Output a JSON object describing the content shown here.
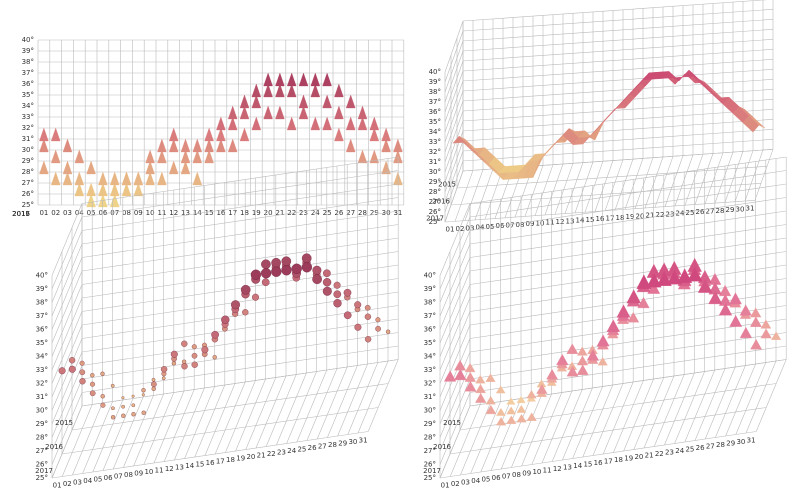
{
  "chart_data": [
    {
      "type": "cone",
      "view": "front",
      "categories": [
        "01",
        "02",
        "03",
        "04",
        "05",
        "06",
        "07",
        "08",
        "09",
        "10",
        "11",
        "12",
        "13",
        "14",
        "15",
        "16",
        "17",
        "18",
        "19",
        "20",
        "21",
        "22",
        "23",
        "24",
        "25",
        "26",
        "27",
        "28",
        "29",
        "30",
        "31"
      ],
      "series": [
        {
          "name": "2015",
          "values": [
            29,
            28,
            28,
            27,
            26,
            26,
            26,
            27,
            27,
            28,
            28,
            29,
            29,
            28,
            30,
            31,
            31,
            32,
            33,
            34,
            34,
            33,
            34,
            33,
            33,
            32,
            31,
            30,
            30,
            29,
            28
          ]
        },
        {
          "name": "2016",
          "values": [
            31,
            30,
            29,
            28,
            27,
            27,
            27,
            28,
            28,
            29,
            30,
            31,
            30,
            30,
            31,
            32,
            33,
            34,
            35,
            36,
            36,
            36,
            35,
            36,
            35,
            34,
            33,
            33,
            32,
            31,
            30
          ]
        },
        {
          "name": "2017",
          "values": [
            32,
            32,
            31,
            30,
            29,
            28,
            28,
            28,
            28,
            30,
            31,
            32,
            31,
            31,
            32,
            33,
            34,
            35,
            36,
            37,
            37,
            37,
            37,
            37,
            37,
            36,
            35,
            34,
            33,
            32,
            31
          ]
        }
      ],
      "ylim": [
        25,
        40
      ],
      "yticks": [
        {
          "value": 25,
          "label": "25°"
        },
        {
          "value": 26,
          "label": "26°"
        },
        {
          "value": 27,
          "label": "27°"
        },
        {
          "value": 28,
          "label": "28°"
        },
        {
          "value": 29,
          "label": "29°"
        },
        {
          "value": 30,
          "label": "30°"
        },
        {
          "value": 31,
          "label": "31°"
        },
        {
          "value": 32,
          "label": "32°"
        },
        {
          "value": 33,
          "label": "33°"
        },
        {
          "value": 34,
          "label": "34°"
        },
        {
          "value": 35,
          "label": "35°"
        },
        {
          "value": 36,
          "label": "36°"
        },
        {
          "value": 37,
          "label": "37°"
        },
        {
          "value": 38,
          "label": "38°"
        },
        {
          "value": 39,
          "label": "39°"
        },
        {
          "value": 40,
          "label": "40°"
        }
      ],
      "colors": [
        "#f2e18a",
        "#d8757c",
        "#8e1f4f"
      ]
    },
    {
      "type": "surface",
      "view": "perspective",
      "categories": [
        "01",
        "02",
        "03",
        "04",
        "05",
        "06",
        "07",
        "08",
        "09",
        "10",
        "11",
        "12",
        "13",
        "14",
        "15",
        "16",
        "17",
        "18",
        "19",
        "20",
        "21",
        "22",
        "23",
        "24",
        "25",
        "26",
        "27",
        "28",
        "29",
        "30",
        "31"
      ],
      "series": [
        {
          "name": "2015",
          "values": [
            29,
            28,
            28,
            27,
            26,
            26,
            26,
            27,
            27,
            28,
            28,
            29,
            29,
            28,
            30,
            31,
            31,
            32,
            33,
            34,
            34,
            33,
            34,
            33,
            33,
            32,
            31,
            30,
            30,
            29,
            28
          ]
        },
        {
          "name": "2016",
          "values": [
            31,
            30,
            29,
            28,
            27,
            27,
            27,
            28,
            28,
            29,
            30,
            31,
            30,
            30,
            31,
            32,
            33,
            34,
            35,
            36,
            36,
            36,
            35,
            36,
            35,
            34,
            33,
            33,
            32,
            31,
            30
          ]
        },
        {
          "name": "2017",
          "values": [
            32,
            32,
            31,
            30,
            29,
            28,
            28,
            28,
            28,
            30,
            31,
            32,
            31,
            31,
            32,
            33,
            34,
            35,
            36,
            37,
            37,
            37,
            37,
            37,
            37,
            36,
            35,
            34,
            33,
            32,
            31
          ]
        }
      ],
      "ylim": [
        25,
        40
      ],
      "yticks": [
        {
          "value": 25,
          "label": "25°"
        },
        {
          "value": 26,
          "label": "26°"
        },
        {
          "value": 27,
          "label": "27°"
        },
        {
          "value": 28,
          "label": "28°"
        },
        {
          "value": 29,
          "label": "29°"
        },
        {
          "value": 30,
          "label": "30°"
        },
        {
          "value": 31,
          "label": "31°"
        },
        {
          "value": 32,
          "label": "32°"
        },
        {
          "value": 33,
          "label": "33°"
        },
        {
          "value": 34,
          "label": "34°"
        },
        {
          "value": 35,
          "label": "35°"
        },
        {
          "value": 36,
          "label": "36°"
        },
        {
          "value": 37,
          "label": "37°"
        },
        {
          "value": 38,
          "label": "38°"
        },
        {
          "value": 39,
          "label": "39°"
        },
        {
          "value": 40,
          "label": "40°"
        }
      ],
      "colors": [
        "#f2e18a",
        "#d8757c",
        "#c2286b"
      ]
    },
    {
      "type": "sphere",
      "view": "perspective",
      "categories": [
        "01",
        "02",
        "03",
        "04",
        "05",
        "06",
        "07",
        "08",
        "09",
        "10",
        "11",
        "12",
        "13",
        "14",
        "15",
        "16",
        "17",
        "18",
        "19",
        "20",
        "21",
        "22",
        "23",
        "24",
        "25",
        "26",
        "27",
        "28",
        "29",
        "30",
        "31"
      ],
      "series": [
        {
          "name": "2015",
          "values": [
            29,
            28,
            28,
            27,
            26,
            26,
            26,
            27,
            27,
            28,
            28,
            29,
            29,
            28,
            30,
            31,
            31,
            32,
            33,
            34,
            34,
            33,
            34,
            33,
            33,
            32,
            31,
            30,
            30,
            29,
            28
          ]
        },
        {
          "name": "2016",
          "values": [
            31,
            30,
            29,
            28,
            27,
            27,
            27,
            28,
            28,
            29,
            30,
            31,
            30,
            30,
            31,
            32,
            33,
            34,
            35,
            36,
            36,
            36,
            35,
            36,
            35,
            34,
            33,
            33,
            32,
            31,
            30
          ]
        },
        {
          "name": "2017",
          "values": [
            32,
            32,
            31,
            30,
            29,
            28,
            28,
            28,
            28,
            30,
            31,
            32,
            31,
            31,
            32,
            33,
            34,
            35,
            36,
            37,
            37,
            37,
            37,
            37,
            37,
            36,
            35,
            34,
            33,
            32,
            31
          ]
        }
      ],
      "ylim": [
        25,
        40
      ],
      "yticks": [
        {
          "value": 25,
          "label": "25°"
        },
        {
          "value": 26,
          "label": "26°"
        },
        {
          "value": 27,
          "label": "27°"
        },
        {
          "value": 28,
          "label": "28°"
        },
        {
          "value": 29,
          "label": "29°"
        },
        {
          "value": 30,
          "label": "30°"
        },
        {
          "value": 31,
          "label": "31°"
        },
        {
          "value": 32,
          "label": "32°"
        },
        {
          "value": 33,
          "label": "33°"
        },
        {
          "value": 34,
          "label": "34°"
        },
        {
          "value": 35,
          "label": "35°"
        },
        {
          "value": 36,
          "label": "36°"
        },
        {
          "value": 37,
          "label": "37°"
        },
        {
          "value": 38,
          "label": "38°"
        },
        {
          "value": 39,
          "label": "39°"
        },
        {
          "value": 40,
          "label": "40°"
        }
      ],
      "colors": [
        "#f2d08a",
        "#c8707a",
        "#7e1a45"
      ]
    },
    {
      "type": "cone",
      "view": "perspective",
      "categories": [
        "01",
        "02",
        "03",
        "04",
        "05",
        "06",
        "07",
        "08",
        "09",
        "10",
        "11",
        "12",
        "13",
        "14",
        "15",
        "16",
        "17",
        "18",
        "19",
        "20",
        "21",
        "22",
        "23",
        "24",
        "25",
        "26",
        "27",
        "28",
        "29",
        "30",
        "31"
      ],
      "series": [
        {
          "name": "2015",
          "values": [
            29,
            28,
            28,
            27,
            26,
            26,
            26,
            27,
            27,
            28,
            28,
            29,
            29,
            28,
            30,
            31,
            31,
            32,
            33,
            34,
            34,
            33,
            34,
            33,
            33,
            32,
            31,
            30,
            30,
            29,
            28
          ]
        },
        {
          "name": "2016",
          "values": [
            31,
            30,
            29,
            28,
            27,
            27,
            27,
            28,
            28,
            29,
            30,
            31,
            30,
            30,
            31,
            32,
            33,
            34,
            35,
            36,
            36,
            36,
            35,
            36,
            35,
            34,
            33,
            33,
            32,
            31,
            30
          ]
        },
        {
          "name": "2017",
          "values": [
            32,
            32,
            31,
            30,
            29,
            28,
            28,
            28,
            28,
            30,
            31,
            32,
            31,
            31,
            32,
            33,
            34,
            35,
            36,
            37,
            37,
            37,
            37,
            37,
            37,
            36,
            35,
            34,
            33,
            32,
            31
          ]
        }
      ],
      "ylim": [
        25,
        40
      ],
      "yticks": [
        {
          "value": 25,
          "label": "25°"
        },
        {
          "value": 26,
          "label": "26°"
        },
        {
          "value": 27,
          "label": "27°"
        },
        {
          "value": 28,
          "label": "28°"
        },
        {
          "value": 29,
          "label": "29°"
        },
        {
          "value": 30,
          "label": "30°"
        },
        {
          "value": 31,
          "label": "31°"
        },
        {
          "value": 32,
          "label": "32°"
        },
        {
          "value": 33,
          "label": "33°"
        },
        {
          "value": 34,
          "label": "34°"
        },
        {
          "value": 35,
          "label": "35°"
        },
        {
          "value": 36,
          "label": "36°"
        },
        {
          "value": 37,
          "label": "37°"
        },
        {
          "value": 38,
          "label": "38°"
        },
        {
          "value": 39,
          "label": "39°"
        },
        {
          "value": 40,
          "label": "40°"
        }
      ],
      "colors": [
        "#f5d9a0",
        "#e47a9a",
        "#c2286b"
      ]
    }
  ]
}
